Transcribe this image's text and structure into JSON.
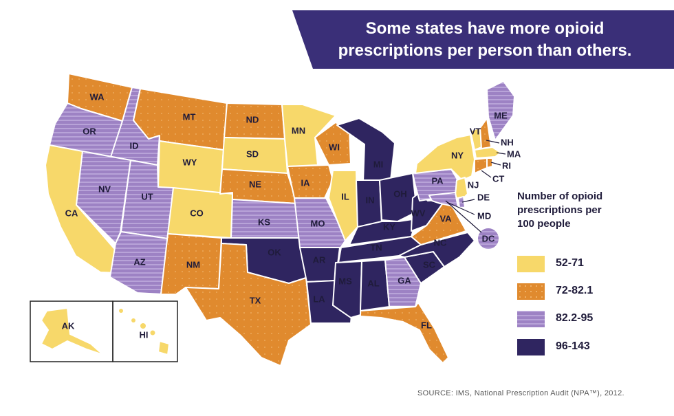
{
  "title": "Some states have more opioid prescriptions per person than others.",
  "title_lines": [
    "Some states have more opioid",
    "prescriptions per person than others."
  ],
  "colors": {
    "banner": "#3a2f78",
    "c1": "#f7d86a",
    "c2": "#e08a2e",
    "c3": "#9d82c4",
    "c4": "#2f2560"
  },
  "legend": {
    "title_lines": [
      "Number of opioid",
      "prescriptions per",
      "100 people"
    ],
    "items": [
      {
        "key": "c1",
        "label": "52-71"
      },
      {
        "key": "c2",
        "label": "72-82.1"
      },
      {
        "key": "c3",
        "label": "82.2-95"
      },
      {
        "key": "c4",
        "label": "96-143"
      }
    ]
  },
  "states": [
    {
      "abbr": "WA",
      "class": "c2"
    },
    {
      "abbr": "OR",
      "class": "c3"
    },
    {
      "abbr": "CA",
      "class": "c1"
    },
    {
      "abbr": "ID",
      "class": "c3"
    },
    {
      "abbr": "NV",
      "class": "c3"
    },
    {
      "abbr": "MT",
      "class": "c2"
    },
    {
      "abbr": "WY",
      "class": "c1"
    },
    {
      "abbr": "UT",
      "class": "c3"
    },
    {
      "abbr": "CO",
      "class": "c1"
    },
    {
      "abbr": "AZ",
      "class": "c3"
    },
    {
      "abbr": "NM",
      "class": "c2"
    },
    {
      "abbr": "ND",
      "class": "c2"
    },
    {
      "abbr": "SD",
      "class": "c1"
    },
    {
      "abbr": "NE",
      "class": "c2"
    },
    {
      "abbr": "KS",
      "class": "c3"
    },
    {
      "abbr": "OK",
      "class": "c4"
    },
    {
      "abbr": "TX",
      "class": "c2"
    },
    {
      "abbr": "MN",
      "class": "c1"
    },
    {
      "abbr": "IA",
      "class": "c2"
    },
    {
      "abbr": "MO",
      "class": "c3"
    },
    {
      "abbr": "AR",
      "class": "c4"
    },
    {
      "abbr": "LA",
      "class": "c4"
    },
    {
      "abbr": "WI",
      "class": "c2"
    },
    {
      "abbr": "IL",
      "class": "c1"
    },
    {
      "abbr": "MI",
      "class": "c4"
    },
    {
      "abbr": "IN",
      "class": "c4"
    },
    {
      "abbr": "OH",
      "class": "c4"
    },
    {
      "abbr": "KY",
      "class": "c4"
    },
    {
      "abbr": "TN",
      "class": "c4"
    },
    {
      "abbr": "MS",
      "class": "c4"
    },
    {
      "abbr": "AL",
      "class": "c4"
    },
    {
      "abbr": "GA",
      "class": "c3"
    },
    {
      "abbr": "FL",
      "class": "c2"
    },
    {
      "abbr": "SC",
      "class": "c4"
    },
    {
      "abbr": "NC",
      "class": "c4"
    },
    {
      "abbr": "VA",
      "class": "c2"
    },
    {
      "abbr": "WV",
      "class": "c4"
    },
    {
      "abbr": "PA",
      "class": "c3"
    },
    {
      "abbr": "NY",
      "class": "c1"
    },
    {
      "abbr": "VT",
      "class": "c1"
    },
    {
      "abbr": "NH",
      "class": "c2"
    },
    {
      "abbr": "ME",
      "class": "c3"
    },
    {
      "abbr": "MA",
      "class": "c1"
    },
    {
      "abbr": "RI",
      "class": "c2"
    },
    {
      "abbr": "CT",
      "class": "c2"
    },
    {
      "abbr": "NJ",
      "class": "c1"
    },
    {
      "abbr": "DE",
      "class": "c3"
    },
    {
      "abbr": "MD",
      "class": "c3"
    },
    {
      "abbr": "DC",
      "class": "c3"
    },
    {
      "abbr": "AK",
      "class": "c1"
    },
    {
      "abbr": "HI",
      "class": "c1"
    }
  ],
  "source": "SOURCE: IMS, National Prescription Audit (NPA™), 2012."
}
